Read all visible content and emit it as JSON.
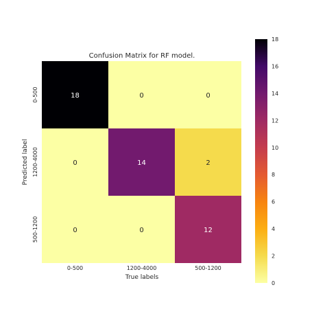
{
  "chart_data": {
    "type": "heatmap",
    "title": "Confusion Matrix for RF model.",
    "xlabel": "True labels",
    "ylabel": "Predicted label",
    "x_categories": [
      "0-500",
      "1200-4000",
      "500-1200"
    ],
    "y_categories": [
      "0-500",
      "1200-4000",
      "500-1200"
    ],
    "values": [
      [
        18,
        0,
        0
      ],
      [
        0,
        14,
        2
      ],
      [
        0,
        0,
        12
      ]
    ],
    "colorscale": "inferno_r",
    "vmin": 0,
    "vmax": 18,
    "colorbar_ticks": [
      "0",
      "2",
      "4",
      "6",
      "8",
      "10",
      "12",
      "14",
      "16",
      "18"
    ],
    "grid": false
  }
}
